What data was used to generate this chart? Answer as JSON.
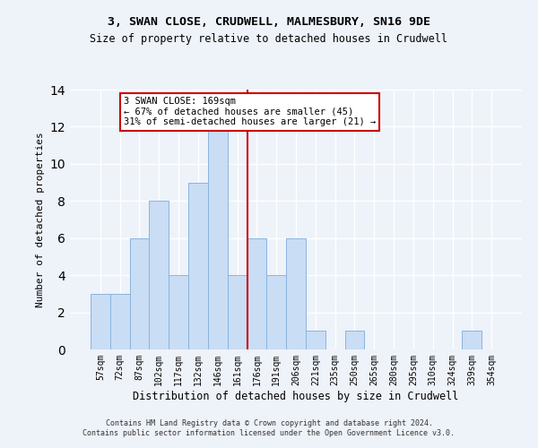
{
  "title1": "3, SWAN CLOSE, CRUDWELL, MALMESBURY, SN16 9DE",
  "title2": "Size of property relative to detached houses in Crudwell",
  "xlabel": "Distribution of detached houses by size in Crudwell",
  "ylabel": "Number of detached properties",
  "categories": [
    "57sqm",
    "72sqm",
    "87sqm",
    "102sqm",
    "117sqm",
    "132sqm",
    "146sqm",
    "161sqm",
    "176sqm",
    "191sqm",
    "206sqm",
    "221sqm",
    "235sqm",
    "250sqm",
    "265sqm",
    "280sqm",
    "295sqm",
    "310sqm",
    "324sqm",
    "339sqm",
    "354sqm"
  ],
  "values": [
    3,
    3,
    6,
    8,
    4,
    9,
    12,
    4,
    6,
    4,
    6,
    1,
    0,
    1,
    0,
    0,
    0,
    0,
    0,
    1,
    0
  ],
  "bar_color": "#c9ddf5",
  "bar_edge_color": "#8ab4dd",
  "vline_x": 7.53,
  "vline_color": "#cc0000",
  "annotation_text": "3 SWAN CLOSE: 169sqm\n← 67% of detached houses are smaller (45)\n31% of semi-detached houses are larger (21) →",
  "annotation_box_color": "#ffffff",
  "annotation_box_edge_color": "#cc0000",
  "ylim": [
    0,
    14
  ],
  "yticks": [
    0,
    2,
    4,
    6,
    8,
    10,
    12,
    14
  ],
  "footnote": "Contains HM Land Registry data © Crown copyright and database right 2024.\nContains public sector information licensed under the Open Government Licence v3.0.",
  "background_color": "#eef2f9",
  "grid_color": "#ffffff"
}
